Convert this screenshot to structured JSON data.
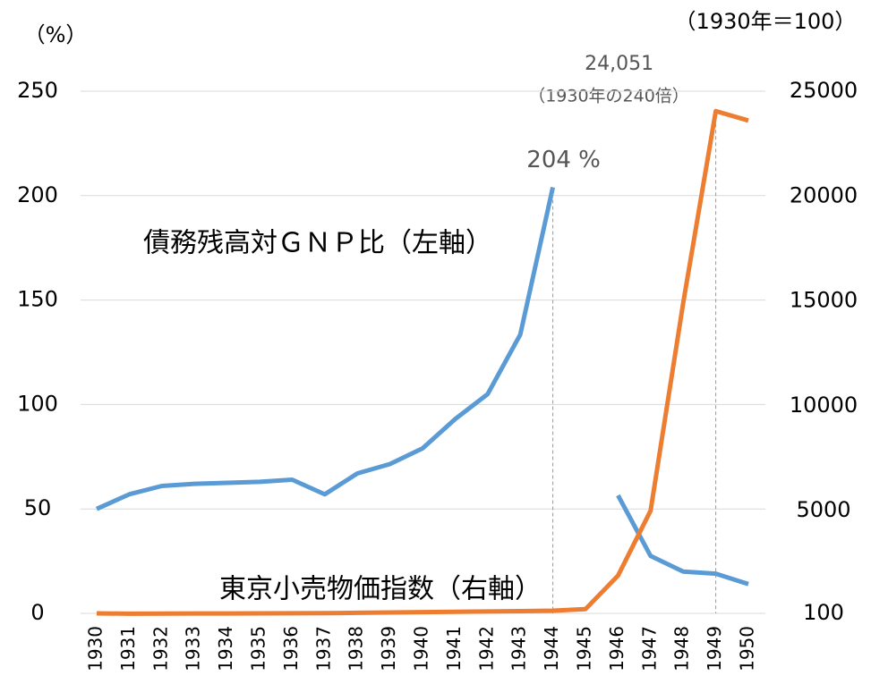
{
  "chart_data": {
    "type": "line",
    "categories": [
      "1930",
      "1931",
      "1932",
      "1933",
      "1934",
      "1935",
      "1936",
      "1937",
      "1938",
      "1939",
      "1940",
      "1941",
      "1942",
      "1943",
      "1944",
      "1945",
      "1946",
      "1947",
      "1948",
      "1949",
      "1950"
    ],
    "series": [
      {
        "name": "債務残高対ＧＮＰ比（左軸）",
        "color": "#5b9bd5",
        "values": [
          50,
          57,
          61,
          62,
          62.5,
          63,
          64,
          57,
          67,
          71.5,
          79,
          93,
          105,
          133.5,
          204,
          null,
          56.5,
          27.5,
          20,
          19,
          14
        ],
        "value_labels": [
          null,
          null,
          null,
          null,
          null,
          null,
          null,
          null,
          null,
          null,
          null,
          null,
          null,
          null,
          "204 %",
          null,
          null,
          null,
          null,
          null,
          null
        ]
      },
      {
        "name": "東京小売物価指数（右軸）",
        "color": "#ed7d31",
        "axis": "y2",
        "values": [
          100,
          85,
          88,
          95,
          97,
          100,
          103,
          110,
          125,
          140,
          160,
          175,
          190,
          205,
          230,
          300,
          1900,
          5000,
          14900,
          24051,
          23600
        ],
        "value_labels": [
          null,
          null,
          null,
          null,
          null,
          null,
          null,
          null,
          null,
          null,
          null,
          null,
          null,
          null,
          null,
          null,
          null,
          null,
          null,
          "24,051",
          null
        ]
      }
    ],
    "ylabel": "（%）",
    "y2label": "（1930年＝100）",
    "annotation": "（1930年の240倍）",
    "ylim": [
      0,
      250
    ],
    "yticks": [
      0,
      50,
      100,
      150,
      200,
      250
    ],
    "y2lim": [
      100,
      25000
    ],
    "y2ticks": [
      100,
      5000,
      10000,
      15000,
      20000,
      25000
    ],
    "grid": true
  }
}
